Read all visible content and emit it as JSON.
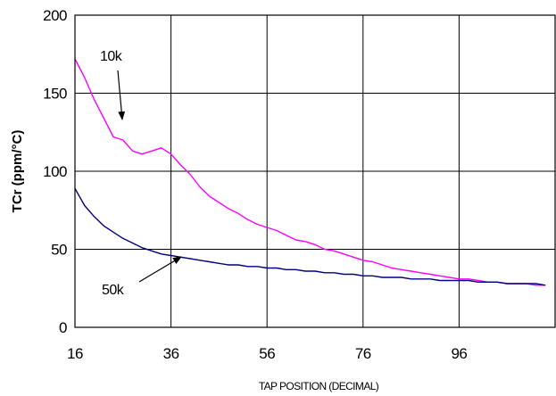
{
  "chart_data": {
    "type": "line",
    "title": "",
    "xlabel": "TAP POSITION (DECIMAL)",
    "ylabel": "TCr (ppm/°C)",
    "xlim": [
      16,
      116
    ],
    "ylim": [
      0,
      200
    ],
    "xticks": [
      16,
      36,
      56,
      76,
      96
    ],
    "yticks": [
      0,
      50,
      100,
      150,
      200
    ],
    "grid": true,
    "series": [
      {
        "name": "10k",
        "color": "#ff00ff",
        "x": [
          16,
          18,
          20,
          22,
          24,
          26,
          28,
          30,
          32,
          34,
          36,
          38,
          40,
          42,
          44,
          46,
          48,
          50,
          52,
          54,
          56,
          58,
          60,
          62,
          64,
          66,
          68,
          70,
          72,
          74,
          76,
          78,
          80,
          82,
          84,
          86,
          88,
          90,
          92,
          94,
          96,
          98,
          100,
          102,
          104,
          106,
          108,
          110,
          112,
          114
        ],
        "y": [
          172,
          160,
          146,
          134,
          122,
          120,
          113,
          111,
          113,
          115,
          111,
          104,
          98,
          90,
          84,
          80,
          76,
          73,
          69,
          66,
          64,
          62,
          59,
          56,
          55,
          53,
          50,
          49,
          47,
          45,
          43,
          42,
          40,
          38,
          37,
          36,
          35,
          34,
          33,
          32,
          31,
          31,
          30,
          29,
          29,
          28,
          28,
          28,
          27,
          27
        ]
      },
      {
        "name": "50k",
        "color": "#000080",
        "x": [
          16,
          18,
          20,
          22,
          24,
          26,
          28,
          30,
          32,
          34,
          36,
          38,
          40,
          42,
          44,
          46,
          48,
          50,
          52,
          54,
          56,
          58,
          60,
          62,
          64,
          66,
          68,
          70,
          72,
          74,
          76,
          78,
          80,
          82,
          84,
          86,
          88,
          90,
          92,
          94,
          96,
          98,
          100,
          102,
          104,
          106,
          108,
          110,
          112,
          114
        ],
        "y": [
          89,
          78,
          71,
          65,
          61,
          57,
          54,
          51,
          49,
          47,
          46,
          45,
          44,
          43,
          42,
          41,
          40,
          40,
          39,
          39,
          38,
          38,
          37,
          37,
          36,
          36,
          35,
          35,
          34,
          34,
          33,
          33,
          32,
          32,
          32,
          31,
          31,
          31,
          30,
          30,
          30,
          30,
          29,
          29,
          29,
          28,
          28,
          28,
          28,
          27
        ]
      }
    ],
    "annotations": [
      {
        "text": "10k",
        "series": "10k"
      },
      {
        "text": "50k",
        "series": "50k"
      }
    ]
  }
}
